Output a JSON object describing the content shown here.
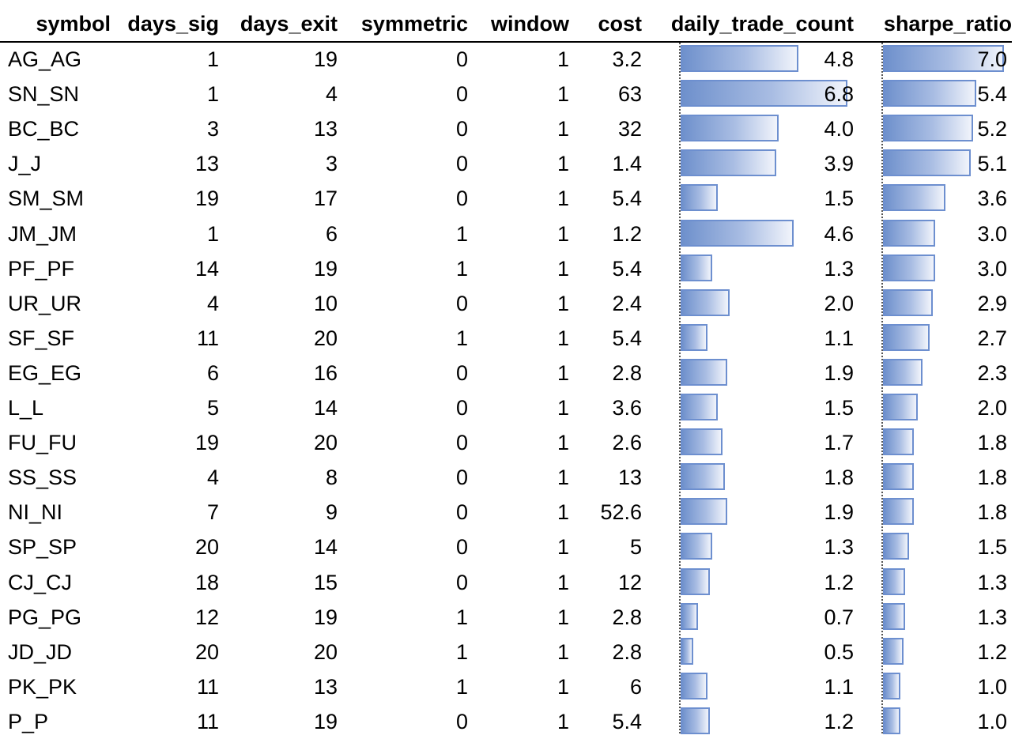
{
  "chart_data": {
    "type": "table",
    "columns": [
      "symbol",
      "days_sig",
      "days_exit",
      "symmetric",
      "window",
      "cost",
      "daily_trade_count",
      "sharpe_ratio"
    ],
    "rows": [
      {
        "symbol": "AG_AG",
        "days_sig": "1",
        "days_exit": "19",
        "symmetric": "0",
        "window": "1",
        "cost": "3.2",
        "daily_trade_count": "4.8",
        "sharpe_ratio": "7.0"
      },
      {
        "symbol": "SN_SN",
        "days_sig": "1",
        "days_exit": "4",
        "symmetric": "0",
        "window": "1",
        "cost": "63",
        "daily_trade_count": "6.8",
        "sharpe_ratio": "5.4"
      },
      {
        "symbol": "BC_BC",
        "days_sig": "3",
        "days_exit": "13",
        "symmetric": "0",
        "window": "1",
        "cost": "32",
        "daily_trade_count": "4.0",
        "sharpe_ratio": "5.2"
      },
      {
        "symbol": "J_J",
        "days_sig": "13",
        "days_exit": "3",
        "symmetric": "0",
        "window": "1",
        "cost": "1.4",
        "daily_trade_count": "3.9",
        "sharpe_ratio": "5.1"
      },
      {
        "symbol": "SM_SM",
        "days_sig": "19",
        "days_exit": "17",
        "symmetric": "0",
        "window": "1",
        "cost": "5.4",
        "daily_trade_count": "1.5",
        "sharpe_ratio": "3.6"
      },
      {
        "symbol": "JM_JM",
        "days_sig": "1",
        "days_exit": "6",
        "symmetric": "1",
        "window": "1",
        "cost": "1.2",
        "daily_trade_count": "4.6",
        "sharpe_ratio": "3.0"
      },
      {
        "symbol": "PF_PF",
        "days_sig": "14",
        "days_exit": "19",
        "symmetric": "1",
        "window": "1",
        "cost": "5.4",
        "daily_trade_count": "1.3",
        "sharpe_ratio": "3.0"
      },
      {
        "symbol": "UR_UR",
        "days_sig": "4",
        "days_exit": "10",
        "symmetric": "0",
        "window": "1",
        "cost": "2.4",
        "daily_trade_count": "2.0",
        "sharpe_ratio": "2.9"
      },
      {
        "symbol": "SF_SF",
        "days_sig": "11",
        "days_exit": "20",
        "symmetric": "1",
        "window": "1",
        "cost": "5.4",
        "daily_trade_count": "1.1",
        "sharpe_ratio": "2.7"
      },
      {
        "symbol": "EG_EG",
        "days_sig": "6",
        "days_exit": "16",
        "symmetric": "0",
        "window": "1",
        "cost": "2.8",
        "daily_trade_count": "1.9",
        "sharpe_ratio": "2.3"
      },
      {
        "symbol": "L_L",
        "days_sig": "5",
        "days_exit": "14",
        "symmetric": "0",
        "window": "1",
        "cost": "3.6",
        "daily_trade_count": "1.5",
        "sharpe_ratio": "2.0"
      },
      {
        "symbol": "FU_FU",
        "days_sig": "19",
        "days_exit": "20",
        "symmetric": "0",
        "window": "1",
        "cost": "2.6",
        "daily_trade_count": "1.7",
        "sharpe_ratio": "1.8"
      },
      {
        "symbol": "SS_SS",
        "days_sig": "4",
        "days_exit": "8",
        "symmetric": "0",
        "window": "1",
        "cost": "13",
        "daily_trade_count": "1.8",
        "sharpe_ratio": "1.8"
      },
      {
        "symbol": "NI_NI",
        "days_sig": "7",
        "days_exit": "9",
        "symmetric": "0",
        "window": "1",
        "cost": "52.6",
        "daily_trade_count": "1.9",
        "sharpe_ratio": "1.8"
      },
      {
        "symbol": "SP_SP",
        "days_sig": "20",
        "days_exit": "14",
        "symmetric": "0",
        "window": "1",
        "cost": "5",
        "daily_trade_count": "1.3",
        "sharpe_ratio": "1.5"
      },
      {
        "symbol": "CJ_CJ",
        "days_sig": "18",
        "days_exit": "15",
        "symmetric": "0",
        "window": "1",
        "cost": "12",
        "daily_trade_count": "1.2",
        "sharpe_ratio": "1.3"
      },
      {
        "symbol": "PG_PG",
        "days_sig": "12",
        "days_exit": "19",
        "symmetric": "1",
        "window": "1",
        "cost": "2.8",
        "daily_trade_count": "0.7",
        "sharpe_ratio": "1.3"
      },
      {
        "symbol": "JD_JD",
        "days_sig": "20",
        "days_exit": "20",
        "symmetric": "1",
        "window": "1",
        "cost": "2.8",
        "daily_trade_count": "0.5",
        "sharpe_ratio": "1.2"
      },
      {
        "symbol": "PK_PK",
        "days_sig": "11",
        "days_exit": "13",
        "symmetric": "1",
        "window": "1",
        "cost": "6",
        "daily_trade_count": "1.1",
        "sharpe_ratio": "1.0"
      },
      {
        "symbol": "P_P",
        "days_sig": "11",
        "days_exit": "19",
        "symmetric": "0",
        "window": "1",
        "cost": "5.4",
        "daily_trade_count": "1.2",
        "sharpe_ratio": "1.0"
      }
    ],
    "data_bars": {
      "daily_trade_count": {
        "min": 0,
        "max": 6.8,
        "color": "#6e90cc"
      },
      "sharpe_ratio": {
        "min": 0,
        "max": 7.0,
        "color": "#6e90cc"
      }
    }
  }
}
